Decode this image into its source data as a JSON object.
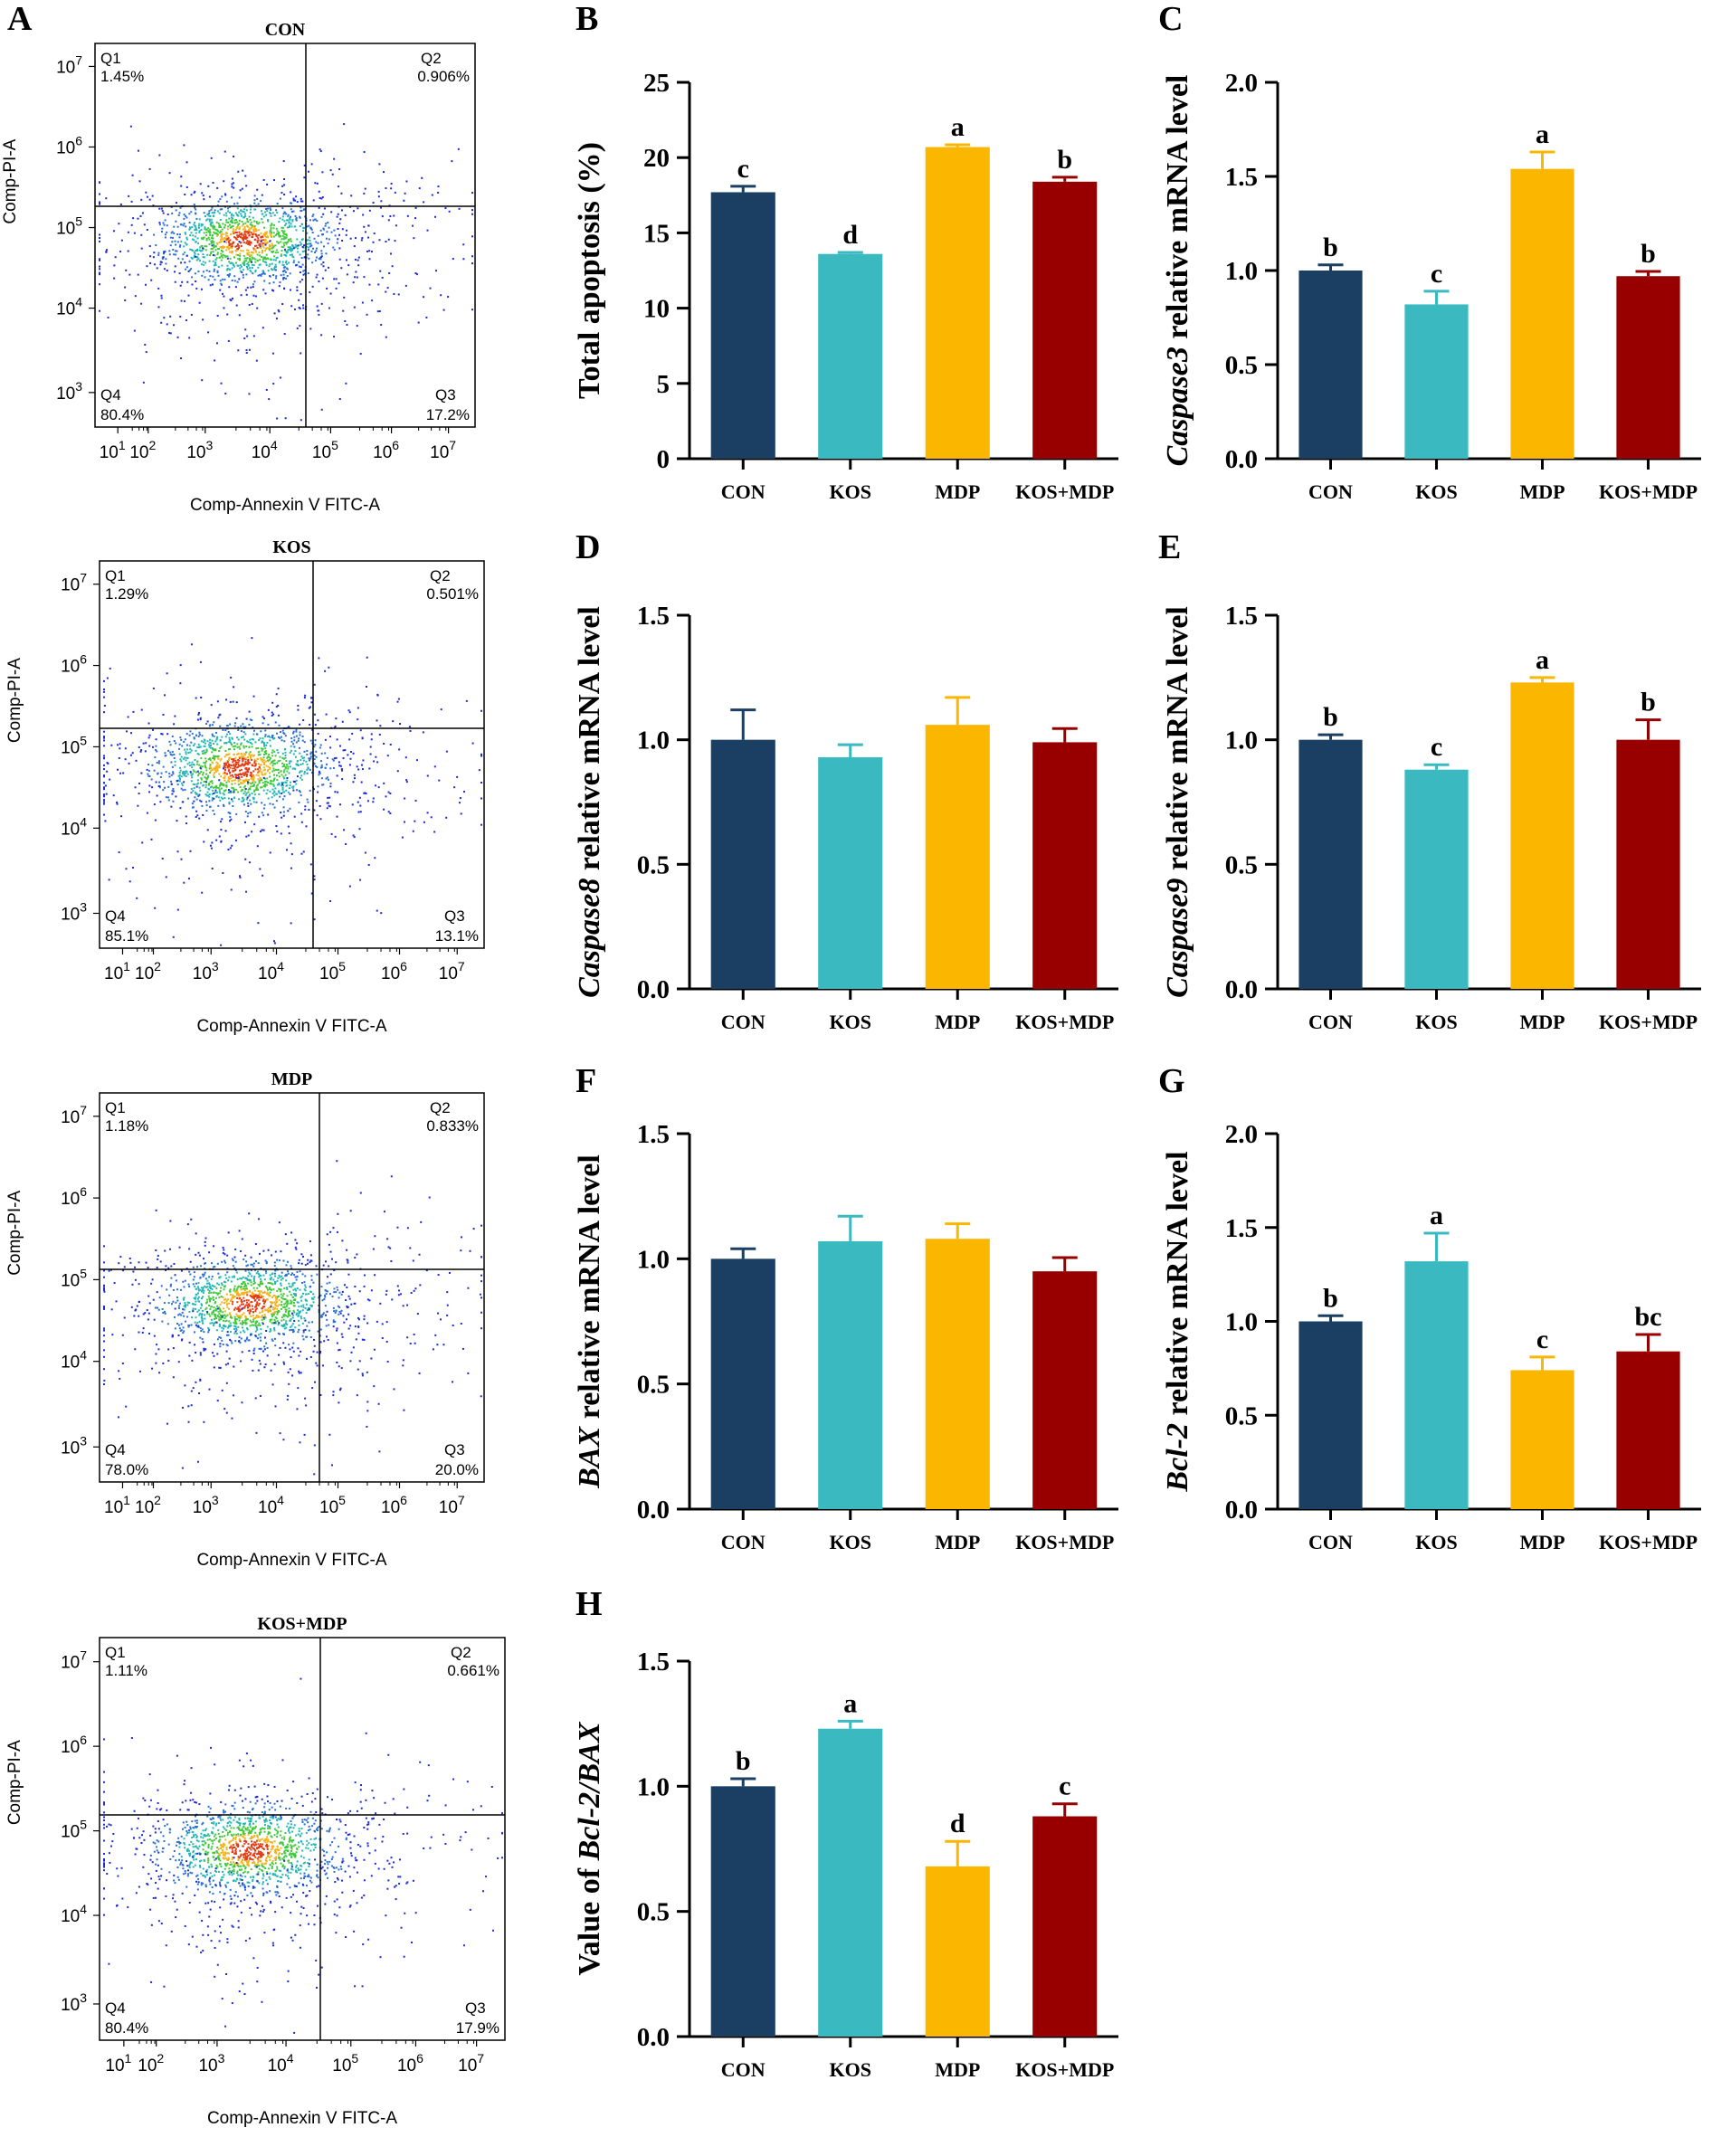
{
  "panel_letters": [
    "A",
    "B",
    "C",
    "D",
    "E",
    "F",
    "G",
    "H"
  ],
  "colors": {
    "CON": "#1a3f63",
    "KOS": "#3bb9c1",
    "MDP": "#fbb700",
    "KOS+MDP": "#980000"
  },
  "chart_data": [
    {
      "panel": "A",
      "type": "scatter",
      "subtype": "flow-cytometry-quadrant",
      "xlabel": "Comp-Annexin V FITC-A",
      "ylabel": "Comp-PI-A",
      "x_tick_labels": [
        "10^1",
        "10^2",
        "10^3",
        "10^4",
        "10^5",
        "10^6",
        "10^7"
      ],
      "y_tick_labels": [
        "10^3",
        "10^4",
        "10^5",
        "10^6",
        "10^7"
      ],
      "quadrant_names": [
        "Q1",
        "Q2",
        "Q3",
        "Q4"
      ],
      "plots": [
        {
          "title": "CON",
          "Q1": "1.45%",
          "Q2": "0.906%",
          "Q3": "17.2%",
          "Q4": "80.4%"
        },
        {
          "title": "KOS",
          "Q1": "1.29%",
          "Q2": "0.501%",
          "Q3": "13.1%",
          "Q4": "85.1%"
        },
        {
          "title": "MDP",
          "Q1": "1.18%",
          "Q2": "0.833%",
          "Q3": "20.0%",
          "Q4": "78.0%"
        },
        {
          "title": "KOS+MDP",
          "Q1": "1.11%",
          "Q2": "0.661%",
          "Q3": "17.9%",
          "Q4": "80.4%"
        }
      ]
    },
    {
      "panel": "B",
      "type": "bar",
      "ylabel": "Total apoptosis (%)",
      "ylabel_parts": [
        "Total apoptosis (%)"
      ],
      "categories": [
        "CON",
        "KOS",
        "MDP",
        "KOS+MDP"
      ],
      "values": [
        17.7,
        13.6,
        20.7,
        18.4
      ],
      "errors": [
        0.4,
        0.1,
        0.15,
        0.3
      ],
      "letters": [
        "c",
        "d",
        "a",
        "b"
      ],
      "ylim": [
        0,
        25
      ],
      "yticks": [
        0,
        5,
        10,
        15,
        20,
        25
      ],
      "ytick_labels": [
        "0",
        "5",
        "10",
        "15",
        "20",
        "25"
      ]
    },
    {
      "panel": "C",
      "type": "bar",
      "ylabel": "Caspase3 relative mRNA level",
      "ylabel_parts": [
        "Caspase3",
        " relative mRNA level"
      ],
      "categories": [
        "CON",
        "KOS",
        "MDP",
        "KOS+MDP"
      ],
      "values": [
        1.0,
        0.82,
        1.54,
        0.97
      ],
      "errors": [
        0.03,
        0.07,
        0.09,
        0.025
      ],
      "letters": [
        "b",
        "c",
        "a",
        "b"
      ],
      "ylim": [
        0,
        2.0
      ],
      "yticks": [
        0,
        0.5,
        1.0,
        1.5,
        2.0
      ],
      "ytick_labels": [
        "0.0",
        "0.5",
        "1.0",
        "1.5",
        "2.0"
      ]
    },
    {
      "panel": "D",
      "type": "bar",
      "ylabel": "Caspase8 relative mRNA level",
      "ylabel_parts": [
        "Caspase8",
        " relative mRNA level"
      ],
      "categories": [
        "CON",
        "KOS",
        "MDP",
        "KOS+MDP"
      ],
      "values": [
        1.0,
        0.93,
        1.06,
        0.99
      ],
      "errors": [
        0.12,
        0.05,
        0.11,
        0.055
      ],
      "letters": [
        "",
        "",
        "",
        ""
      ],
      "ylim": [
        0,
        1.5
      ],
      "yticks": [
        0,
        0.5,
        1.0,
        1.5
      ],
      "ytick_labels": [
        "0.0",
        "0.5",
        "1.0",
        "1.5"
      ]
    },
    {
      "panel": "E",
      "type": "bar",
      "ylabel": "Caspase9 relative mRNA level",
      "ylabel_parts": [
        "Caspase9",
        " relative mRNA level"
      ],
      "categories": [
        "CON",
        "KOS",
        "MDP",
        "KOS+MDP"
      ],
      "values": [
        1.0,
        0.88,
        1.23,
        1.0
      ],
      "errors": [
        0.02,
        0.02,
        0.02,
        0.08
      ],
      "letters": [
        "b",
        "c",
        "a",
        "b"
      ],
      "ylim": [
        0,
        1.5
      ],
      "yticks": [
        0,
        0.5,
        1.0,
        1.5
      ],
      "ytick_labels": [
        "0.0",
        "0.5",
        "1.0",
        "1.5"
      ]
    },
    {
      "panel": "F",
      "type": "bar",
      "ylabel": "BAX relative mRNA level",
      "ylabel_parts": [
        "BAX",
        " relative mRNA level"
      ],
      "categories": [
        "CON",
        "KOS",
        "MDP",
        "KOS+MDP"
      ],
      "values": [
        1.0,
        1.07,
        1.08,
        0.95
      ],
      "errors": [
        0.04,
        0.1,
        0.06,
        0.055
      ],
      "letters": [
        "",
        "",
        "",
        ""
      ],
      "ylim": [
        0,
        1.5
      ],
      "yticks": [
        0,
        0.5,
        1.0,
        1.5
      ],
      "ytick_labels": [
        "0.0",
        "0.5",
        "1.0",
        "1.5"
      ]
    },
    {
      "panel": "G",
      "type": "bar",
      "ylabel": "Bcl-2 relative mRNA level",
      "ylabel_parts": [
        "Bcl-2",
        " relative mRNA level"
      ],
      "categories": [
        "CON",
        "KOS",
        "MDP",
        "KOS+MDP"
      ],
      "values": [
        1.0,
        1.32,
        0.74,
        0.84
      ],
      "errors": [
        0.03,
        0.15,
        0.07,
        0.09
      ],
      "letters": [
        "b",
        "a",
        "c",
        "bc"
      ],
      "ylim": [
        0,
        2.0
      ],
      "yticks": [
        0,
        0.5,
        1.0,
        1.5,
        2.0
      ],
      "ytick_labels": [
        "0.0",
        "0.5",
        "1.0",
        "1.5",
        "2.0"
      ]
    },
    {
      "panel": "H",
      "type": "bar",
      "ylabel": "Value of Bcl-2/BAX",
      "ylabel_parts": [
        "Value of ",
        "Bcl-2/BAX"
      ],
      "categories": [
        "CON",
        "KOS",
        "MDP",
        "KOS+MDP"
      ],
      "values": [
        1.0,
        1.23,
        0.68,
        0.88
      ],
      "errors": [
        0.03,
        0.03,
        0.1,
        0.05
      ],
      "letters": [
        "b",
        "a",
        "d",
        "c"
      ],
      "ylim": [
        0,
        1.5
      ],
      "yticks": [
        0,
        0.5,
        1.0,
        1.5
      ],
      "ytick_labels": [
        "0.0",
        "0.5",
        "1.0",
        "1.5"
      ]
    }
  ]
}
